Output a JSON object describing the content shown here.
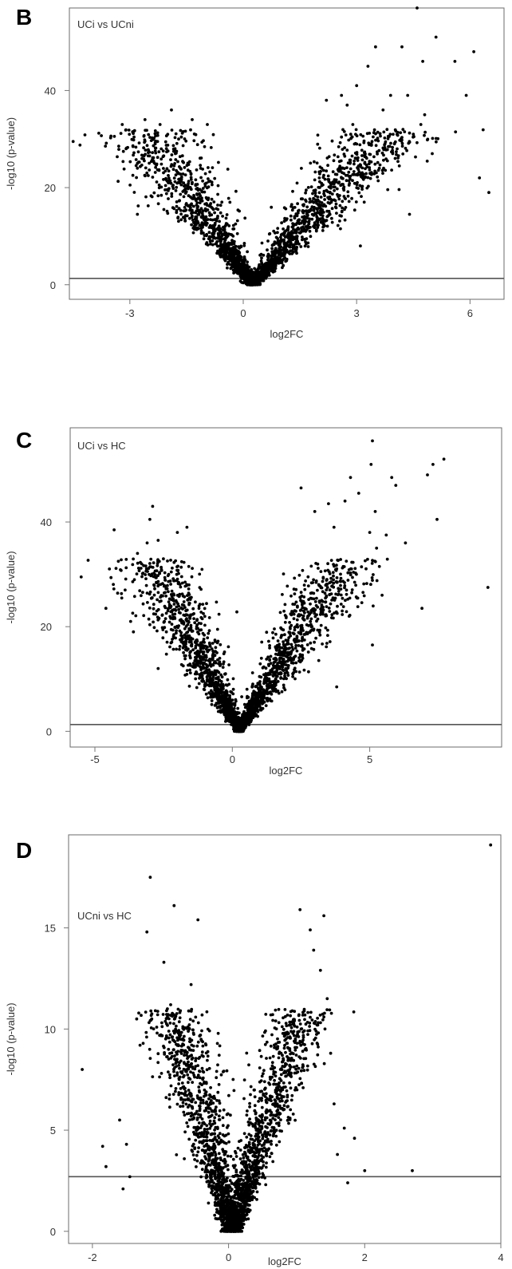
{
  "chart_data": [
    {
      "type": "scatter",
      "panel_label": "B",
      "title": "UCi vs UCni",
      "xlabel": "log2FC",
      "ylabel": "-log10 (p-value)",
      "xlim": [
        -4.6,
        6.9
      ],
      "ylim": [
        -3,
        57
      ],
      "xticks": [
        -3,
        0,
        3,
        6
      ],
      "yticks": [
        0,
        20,
        40
      ],
      "threshold": 1.3,
      "grid": false,
      "cloud": {
        "center": 0.25,
        "spread_per_y": 0.072,
        "ymax": 32,
        "n": 2600
      },
      "outliers": [
        {
          "x": -4.5,
          "y": 29.5
        },
        {
          "x": -3.2,
          "y": 33
        },
        {
          "x": -3.1,
          "y": 28
        },
        {
          "x": -2.6,
          "y": 34
        },
        {
          "x": -2.8,
          "y": 25
        },
        {
          "x": -2.55,
          "y": 23
        },
        {
          "x": -2.2,
          "y": 33
        },
        {
          "x": -2.8,
          "y": 14.5
        },
        {
          "x": -1.9,
          "y": 36
        },
        {
          "x": -1.35,
          "y": 34
        },
        {
          "x": -0.95,
          "y": 33
        },
        {
          "x": -2.1,
          "y": 15.5
        },
        {
          "x": 2.2,
          "y": 38
        },
        {
          "x": 2.6,
          "y": 39
        },
        {
          "x": 3.0,
          "y": 41
        },
        {
          "x": 3.3,
          "y": 45
        },
        {
          "x": 3.5,
          "y": 49
        },
        {
          "x": 3.7,
          "y": 36
        },
        {
          "x": 3.9,
          "y": 39
        },
        {
          "x": 4.0,
          "y": 29
        },
        {
          "x": 4.2,
          "y": 49
        },
        {
          "x": 4.35,
          "y": 39
        },
        {
          "x": 4.5,
          "y": 31
        },
        {
          "x": 4.4,
          "y": 14.5
        },
        {
          "x": 4.7,
          "y": 33
        },
        {
          "x": 4.75,
          "y": 46
        },
        {
          "x": 4.8,
          "y": 35
        },
        {
          "x": 4.6,
          "y": 57
        },
        {
          "x": 5.0,
          "y": 27
        },
        {
          "x": 5.1,
          "y": 51
        },
        {
          "x": 5.6,
          "y": 46
        },
        {
          "x": 5.9,
          "y": 39
        },
        {
          "x": 6.1,
          "y": 48
        },
        {
          "x": 6.25,
          "y": 22
        },
        {
          "x": 6.5,
          "y": 19
        },
        {
          "x": 3.2,
          "y": 17
        },
        {
          "x": 3.6,
          "y": 24
        },
        {
          "x": 3.1,
          "y": 8
        },
        {
          "x": 2.9,
          "y": 33
        },
        {
          "x": 2.75,
          "y": 37
        }
      ]
    },
    {
      "type": "scatter",
      "panel_label": "C",
      "title": "UCi vs HC",
      "xlabel": "log2FC",
      "ylabel": "-log10 (p-value)",
      "xlim": [
        -5.9,
        9.8
      ],
      "ylim": [
        -3,
        58
      ],
      "xticks": [
        -5,
        0,
        5
      ],
      "yticks": [
        0,
        20,
        40
      ],
      "threshold": 1.3,
      "grid": false,
      "cloud": {
        "center": 0.25,
        "spread_per_y": 0.078,
        "ymax": 33,
        "n": 2600
      },
      "outliers": [
        {
          "x": -5.5,
          "y": 29.5
        },
        {
          "x": -4.6,
          "y": 23.5
        },
        {
          "x": -4.3,
          "y": 38.5
        },
        {
          "x": -3.9,
          "y": 27
        },
        {
          "x": -3.7,
          "y": 21
        },
        {
          "x": -3.45,
          "y": 34
        },
        {
          "x": -3.3,
          "y": 32
        },
        {
          "x": -3.1,
          "y": 36
        },
        {
          "x": -3.0,
          "y": 40.5
        },
        {
          "x": -2.9,
          "y": 43
        },
        {
          "x": -2.7,
          "y": 36.5
        },
        {
          "x": -2.7,
          "y": 12
        },
        {
          "x": -2.4,
          "y": 19
        },
        {
          "x": -2.0,
          "y": 38
        },
        {
          "x": -1.65,
          "y": 39
        },
        {
          "x": -3.6,
          "y": 19
        },
        {
          "x": 2.5,
          "y": 46.5
        },
        {
          "x": 3.0,
          "y": 42
        },
        {
          "x": 3.5,
          "y": 43.5
        },
        {
          "x": 3.7,
          "y": 39
        },
        {
          "x": 4.1,
          "y": 44
        },
        {
          "x": 4.3,
          "y": 48.5
        },
        {
          "x": 4.6,
          "y": 45.5
        },
        {
          "x": 5.0,
          "y": 38
        },
        {
          "x": 5.05,
          "y": 51
        },
        {
          "x": 5.1,
          "y": 55.5
        },
        {
          "x": 5.2,
          "y": 42
        },
        {
          "x": 5.25,
          "y": 35
        },
        {
          "x": 5.35,
          "y": 31.5
        },
        {
          "x": 5.45,
          "y": 26
        },
        {
          "x": 5.6,
          "y": 37.5
        },
        {
          "x": 5.8,
          "y": 48.5
        },
        {
          "x": 5.95,
          "y": 47
        },
        {
          "x": 6.3,
          "y": 36
        },
        {
          "x": 6.9,
          "y": 23.5
        },
        {
          "x": 7.1,
          "y": 49
        },
        {
          "x": 7.3,
          "y": 51
        },
        {
          "x": 7.45,
          "y": 40.5
        },
        {
          "x": 7.7,
          "y": 52
        },
        {
          "x": 9.3,
          "y": 27.5
        },
        {
          "x": 5.1,
          "y": 16.5
        },
        {
          "x": 4.0,
          "y": 23
        },
        {
          "x": 3.8,
          "y": 8.5
        },
        {
          "x": 4.25,
          "y": 22
        }
      ]
    },
    {
      "type": "scatter",
      "panel_label": "D",
      "title": "UCni vs HC",
      "xlabel": "log2FC",
      "ylabel": "-log10 (p-value)",
      "xlim": [
        -2.35,
        4.0
      ],
      "ylim": [
        -0.6,
        19.6
      ],
      "xticks": [
        -2,
        0,
        2,
        4
      ],
      "yticks": [
        0,
        5,
        10,
        15
      ],
      "threshold": 2.7,
      "grid": false,
      "cloud": {
        "center": 0.05,
        "spread_per_y": 0.062,
        "ymax": 11,
        "n": 2600
      },
      "outliers": [
        {
          "x": -2.15,
          "y": 8
        },
        {
          "x": -1.85,
          "y": 4.2
        },
        {
          "x": -1.8,
          "y": 3.2
        },
        {
          "x": -1.6,
          "y": 5.5
        },
        {
          "x": -1.5,
          "y": 4.3
        },
        {
          "x": -1.45,
          "y": 2.7
        },
        {
          "x": -1.35,
          "y": 10.5
        },
        {
          "x": -1.3,
          "y": 9.2
        },
        {
          "x": -1.15,
          "y": 17.5
        },
        {
          "x": -1.2,
          "y": 14.8
        },
        {
          "x": -1.05,
          "y": 9.8
        },
        {
          "x": -0.95,
          "y": 13.3
        },
        {
          "x": -0.8,
          "y": 16.1
        },
        {
          "x": -0.85,
          "y": 11.2
        },
        {
          "x": -0.45,
          "y": 15.4
        },
        {
          "x": -0.55,
          "y": 12.2
        },
        {
          "x": -0.6,
          "y": 10.1
        },
        {
          "x": 1.05,
          "y": 15.9
        },
        {
          "x": 1.2,
          "y": 14.9
        },
        {
          "x": 1.25,
          "y": 13.9
        },
        {
          "x": 1.35,
          "y": 12.9
        },
        {
          "x": 1.45,
          "y": 11.5
        },
        {
          "x": 1.4,
          "y": 15.6
        },
        {
          "x": 1.55,
          "y": 6.3
        },
        {
          "x": 1.6,
          "y": 3.8
        },
        {
          "x": 1.7,
          "y": 5.1
        },
        {
          "x": 1.85,
          "y": 4.6
        },
        {
          "x": 2.0,
          "y": 3.0
        },
        {
          "x": 2.7,
          "y": 3.0
        },
        {
          "x": 3.85,
          "y": 19.1
        },
        {
          "x": 1.5,
          "y": 8.8
        },
        {
          "x": 1.3,
          "y": 10.2
        },
        {
          "x": -1.55,
          "y": 2.1
        },
        {
          "x": 1.75,
          "y": 2.4
        }
      ]
    }
  ]
}
